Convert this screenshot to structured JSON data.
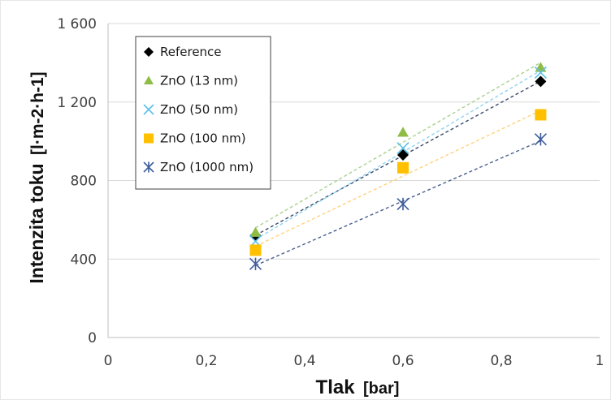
{
  "chart_data": {
    "type": "scatter",
    "xlabel": "Tlak",
    "xlabel_unit": "[bar]",
    "ylabel": "Intenzita toku",
    "ylabel_unit": "[l·m-2·h-1]",
    "xlim": [
      0,
      1
    ],
    "ylim": [
      0,
      1600
    ],
    "x_ticks": [
      0,
      0.2,
      0.4,
      0.6,
      0.8,
      1
    ],
    "x_tick_labels": [
      "0",
      "0,2",
      "0,4",
      "0,6",
      "0,8",
      "1"
    ],
    "y_ticks": [
      0,
      400,
      800,
      1200,
      1600
    ],
    "y_tick_labels": [
      "0",
      "400",
      "800",
      "1 200",
      "1 600"
    ],
    "grid": "horizontal",
    "legend_position": "top-left",
    "trendlines": "dashed linear fit per series",
    "series": [
      {
        "name": "Reference",
        "marker": "diamond",
        "color": "#000000",
        "trend_color": "#3b4a6b",
        "x": [
          0.3,
          0.6,
          0.88
        ],
        "y": [
          520,
          930,
          1305
        ]
      },
      {
        "name": "ZnO (13 nm)",
        "marker": "triangle",
        "color": "#8fbc45",
        "trend_color": "#a9d18e",
        "x": [
          0.3,
          0.6,
          0.88
        ],
        "y": [
          535,
          1045,
          1375
        ]
      },
      {
        "name": "ZnO (50 nm)",
        "marker": "x",
        "color": "#5bc0eb",
        "trend_color": "#8fd3f0",
        "x": [
          0.3,
          0.6,
          0.88
        ],
        "y": [
          490,
          965,
          1350
        ]
      },
      {
        "name": "ZnO (100 nm)",
        "marker": "square",
        "color": "#ffc000",
        "trend_color": "#ffd27a",
        "x": [
          0.3,
          0.6,
          0.88
        ],
        "y": [
          445,
          865,
          1135
        ]
      },
      {
        "name": "ZnO (1000 nm)",
        "marker": "asterisk",
        "color": "#3e5c9a",
        "trend_color": "#4a5f8f",
        "x": [
          0.3,
          0.6,
          0.88
        ],
        "y": [
          375,
          680,
          1010
        ]
      }
    ]
  }
}
